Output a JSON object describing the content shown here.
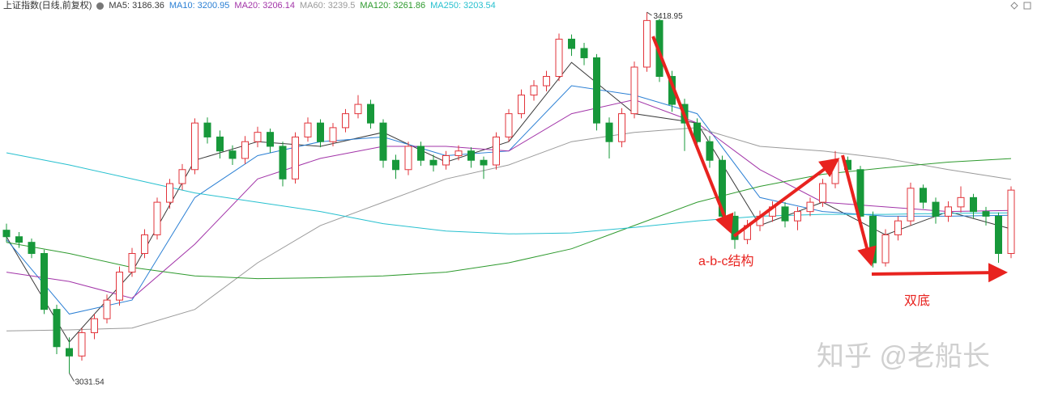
{
  "chart_data": {
    "type": "candlestick",
    "title": "上证指数(日线,前复权)",
    "ylim": [
      3006,
      3432
    ],
    "up_color": "#e2343b",
    "down_color": "#17983a",
    "open": [
      3185,
      3178,
      3172,
      3160,
      3100,
      3058,
      3050,
      3075,
      3090,
      3110,
      3140,
      3160,
      3180,
      3215,
      3235,
      3250,
      3300,
      3285,
      3270,
      3262,
      3280,
      3290,
      3275,
      3240,
      3285,
      3300,
      3280,
      3295,
      3310,
      3320,
      3300,
      3260,
      3250,
      3275,
      3260,
      3255,
      3265,
      3270,
      3260,
      3255,
      3285,
      3310,
      3330,
      3340,
      3350,
      3390,
      3380,
      3370,
      3300,
      3280,
      3310,
      3360,
      3410,
      3350,
      3320,
      3300,
      3280,
      3260,
      3200,
      3175,
      3190,
      3200,
      3210,
      3195,
      3205,
      3215,
      3235,
      3260,
      3250,
      3200,
      3150,
      3180,
      3195,
      3230,
      3215,
      3200,
      3210,
      3220,
      3205,
      3200,
      3160
    ],
    "high": [
      3192,
      3183,
      3176,
      3164,
      3105,
      3070,
      3080,
      3095,
      3116,
      3146,
      3166,
      3186,
      3220,
      3240,
      3256,
      3305,
      3306,
      3292,
      3276,
      3286,
      3296,
      3294,
      3280,
      3290,
      3306,
      3304,
      3300,
      3315,
      3330,
      3325,
      3304,
      3266,
      3280,
      3280,
      3266,
      3270,
      3276,
      3274,
      3264,
      3290,
      3315,
      3336,
      3346,
      3356,
      3396,
      3395,
      3386,
      3374,
      3306,
      3316,
      3366,
      3418.95,
      3412,
      3356,
      3326,
      3305,
      3286,
      3265,
      3205,
      3196,
      3206,
      3216,
      3215,
      3210,
      3220,
      3240,
      3270,
      3264,
      3254,
      3205,
      3186,
      3200,
      3236,
      3234,
      3220,
      3216,
      3232,
      3224,
      3210,
      3204,
      3232
    ],
    "low": [
      3172,
      3166,
      3155,
      3095,
      3052,
      3031.54,
      3045,
      3068,
      3085,
      3104,
      3135,
      3155,
      3175,
      3208,
      3228,
      3245,
      3278,
      3262,
      3255,
      3256,
      3274,
      3268,
      3232,
      3235,
      3280,
      3274,
      3275,
      3290,
      3305,
      3294,
      3252,
      3240,
      3244,
      3254,
      3248,
      3250,
      3260,
      3252,
      3240,
      3250,
      3280,
      3305,
      3324,
      3334,
      3345,
      3372,
      3362,
      3292,
      3262,
      3274,
      3305,
      3355,
      3344,
      3312,
      3270,
      3272,
      3252,
      3192,
      3165,
      3170,
      3184,
      3194,
      3188,
      3185,
      3200,
      3210,
      3230,
      3242,
      3192,
      3145,
      3146,
      3174,
      3190,
      3208,
      3192,
      3194,
      3204,
      3198,
      3190,
      3150,
      3155
    ],
    "close": [
      3178,
      3172,
      3160,
      3100,
      3060,
      3050,
      3075,
      3090,
      3110,
      3140,
      3160,
      3180,
      3215,
      3235,
      3250,
      3300,
      3285,
      3270,
      3262,
      3280,
      3290,
      3275,
      3240,
      3285,
      3300,
      3280,
      3295,
      3310,
      3320,
      3300,
      3260,
      3250,
      3275,
      3260,
      3255,
      3265,
      3270,
      3260,
      3255,
      3285,
      3310,
      3330,
      3340,
      3350,
      3390,
      3380,
      3370,
      3300,
      3280,
      3310,
      3360,
      3410,
      3350,
      3320,
      3300,
      3280,
      3260,
      3200,
      3175,
      3190,
      3200,
      3210,
      3195,
      3205,
      3215,
      3235,
      3260,
      3250,
      3200,
      3150,
      3180,
      3195,
      3230,
      3215,
      3200,
      3210,
      3220,
      3205,
      3200,
      3160,
      3228
    ],
    "series": [
      {
        "name": "MA5:",
        "last": 3186.36,
        "color": "#3a3a3a",
        "x": [
          0,
          5,
          10,
          15,
          20,
          25,
          30,
          35,
          40,
          45,
          50,
          55,
          60,
          65,
          70,
          75,
          80
        ],
        "values": [
          3178,
          3065,
          3140,
          3260,
          3280,
          3275,
          3290,
          3258,
          3280,
          3365,
          3310,
          3300,
          3190,
          3215,
          3180,
          3205,
          3186.36
        ]
      },
      {
        "name": "MA10:",
        "last": 3200.95,
        "color": "#2a7fd4",
        "x": [
          0,
          5,
          10,
          15,
          20,
          25,
          30,
          35,
          40,
          45,
          50,
          55,
          60,
          65,
          70,
          75,
          80
        ],
        "values": [
          3175,
          3095,
          3110,
          3220,
          3265,
          3280,
          3285,
          3265,
          3270,
          3340,
          3330,
          3310,
          3220,
          3205,
          3200,
          3200,
          3200.95
        ]
      },
      {
        "name": "MA20:",
        "last": 3206.14,
        "color": "#a234a8",
        "x": [
          0,
          5,
          10,
          15,
          20,
          25,
          30,
          35,
          40,
          45,
          50,
          55,
          60,
          65,
          70,
          75,
          80
        ],
        "values": [
          3140,
          3130,
          3112,
          3170,
          3240,
          3262,
          3275,
          3275,
          3270,
          3310,
          3325,
          3300,
          3250,
          3215,
          3210,
          3205,
          3206.14
        ]
      },
      {
        "name": "MA60:",
        "last": 3239.5,
        "color": "#9a9a9a",
        "x": [
          0,
          5,
          10,
          15,
          20,
          25,
          30,
          35,
          40,
          45,
          50,
          55,
          60,
          65,
          70,
          75,
          80
        ],
        "values": [
          3077,
          3078,
          3080,
          3100,
          3150,
          3190,
          3215,
          3240,
          3255,
          3280,
          3290,
          3295,
          3275,
          3270,
          3262,
          3250,
          3239.5
        ]
      },
      {
        "name": "MA120:",
        "last": 3261.86,
        "color": "#2e9a2e",
        "x": [
          0,
          5,
          10,
          15,
          20,
          25,
          30,
          35,
          40,
          45,
          50,
          55,
          60,
          65,
          70,
          75,
          80
        ],
        "values": [
          3172,
          3160,
          3145,
          3136,
          3133,
          3134,
          3136,
          3140,
          3150,
          3165,
          3190,
          3215,
          3232,
          3245,
          3252,
          3258,
          3261.86
        ]
      },
      {
        "name": "MA250:",
        "last": 3203.54,
        "color": "#27c0cf",
        "x": [
          0,
          5,
          10,
          15,
          20,
          25,
          30,
          35,
          40,
          45,
          50,
          55,
          60,
          65,
          70,
          75,
          80
        ],
        "values": [
          3268,
          3255,
          3240,
          3225,
          3215,
          3205,
          3192,
          3184,
          3181,
          3182,
          3188,
          3195,
          3200,
          3202,
          3202,
          3203,
          3203.54
        ]
      }
    ],
    "annotations": [
      "a-b-c结构",
      "双底"
    ],
    "watermark": "知乎 @老船长"
  }
}
